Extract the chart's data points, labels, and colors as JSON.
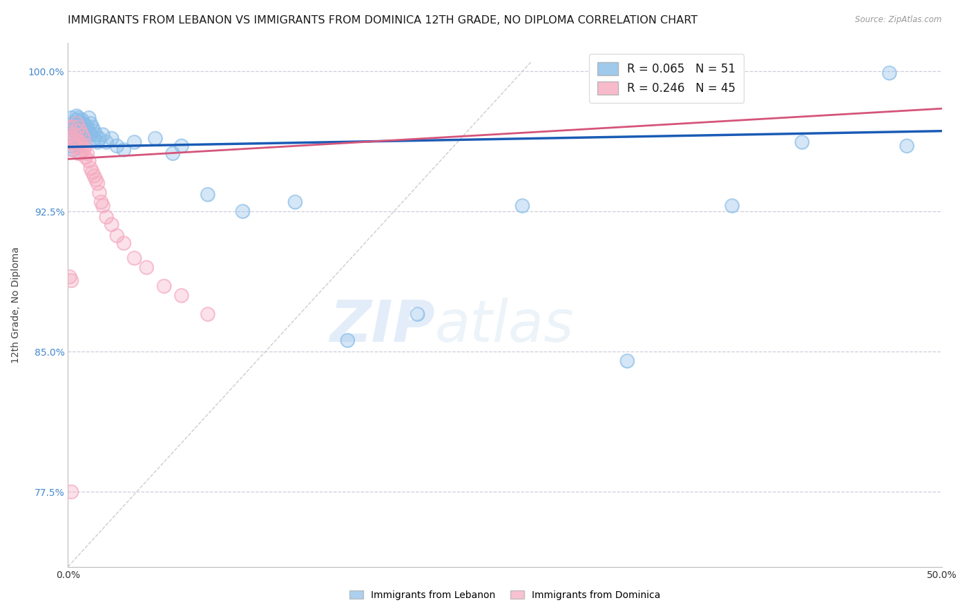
{
  "title": "IMMIGRANTS FROM LEBANON VS IMMIGRANTS FROM DOMINICA 12TH GRADE, NO DIPLOMA CORRELATION CHART",
  "source": "Source: ZipAtlas.com",
  "ylabel": "12th Grade, No Diploma",
  "xlim": [
    0.0,
    0.5
  ],
  "ylim": [
    0.735,
    1.015
  ],
  "y_ticks": [
    0.775,
    0.85,
    0.925,
    1.0
  ],
  "watermark_zip": "ZIP",
  "watermark_atlas": "atlas",
  "blue_scatter_x": [
    0.002,
    0.003,
    0.003,
    0.004,
    0.005,
    0.005,
    0.005,
    0.006,
    0.006,
    0.007,
    0.007,
    0.008,
    0.008,
    0.009,
    0.009,
    0.01,
    0.01,
    0.01,
    0.011,
    0.012,
    0.012,
    0.013,
    0.013,
    0.014,
    0.015,
    0.015,
    0.016,
    0.017,
    0.018,
    0.02,
    0.022,
    0.025,
    0.028,
    0.032,
    0.038,
    0.05,
    0.06,
    0.065,
    0.08,
    0.1,
    0.13,
    0.16,
    0.2,
    0.26,
    0.32,
    0.38,
    0.42,
    0.48,
    0.002,
    0.003,
    0.47
  ],
  "blue_scatter_y": [
    0.975,
    0.972,
    0.97,
    0.968,
    0.976,
    0.974,
    0.972,
    0.975,
    0.97,
    0.973,
    0.968,
    0.974,
    0.97,
    0.972,
    0.968,
    0.971,
    0.968,
    0.966,
    0.97,
    0.975,
    0.968,
    0.972,
    0.966,
    0.97,
    0.968,
    0.964,
    0.966,
    0.962,
    0.964,
    0.966,
    0.962,
    0.964,
    0.96,
    0.958,
    0.962,
    0.964,
    0.956,
    0.96,
    0.934,
    0.925,
    0.93,
    0.856,
    0.87,
    0.928,
    0.845,
    0.928,
    0.962,
    0.96,
    0.96,
    0.958,
    0.999
  ],
  "pink_scatter_x": [
    0.001,
    0.002,
    0.002,
    0.002,
    0.003,
    0.003,
    0.004,
    0.004,
    0.005,
    0.005,
    0.005,
    0.006,
    0.006,
    0.006,
    0.007,
    0.007,
    0.007,
    0.008,
    0.008,
    0.009,
    0.009,
    0.01,
    0.01,
    0.011,
    0.012,
    0.013,
    0.014,
    0.015,
    0.016,
    0.017,
    0.018,
    0.019,
    0.02,
    0.022,
    0.025,
    0.028,
    0.032,
    0.038,
    0.045,
    0.055,
    0.065,
    0.08,
    0.001,
    0.002,
    0.002
  ],
  "pink_scatter_y": [
    0.97,
    0.966,
    0.962,
    0.958,
    0.97,
    0.964,
    0.966,
    0.96,
    0.972,
    0.968,
    0.962,
    0.97,
    0.962,
    0.956,
    0.968,
    0.962,
    0.956,
    0.966,
    0.96,
    0.964,
    0.958,
    0.96,
    0.954,
    0.956,
    0.952,
    0.948,
    0.946,
    0.944,
    0.942,
    0.94,
    0.935,
    0.93,
    0.928,
    0.922,
    0.918,
    0.912,
    0.908,
    0.9,
    0.895,
    0.885,
    0.88,
    0.87,
    0.89,
    0.888,
    0.775
  ],
  "blue_line_x": [
    0.0,
    0.5
  ],
  "blue_line_y": [
    0.9595,
    0.968
  ],
  "pink_line_x": [
    0.0,
    0.5
  ],
  "pink_line_y": [
    0.953,
    0.98
  ],
  "ref_line_x": [
    0.0,
    0.265
  ],
  "ref_line_y": [
    0.735,
    1.005
  ],
  "blue_color": "#89bde8",
  "pink_color": "#f5aac0",
  "blue_line_color": "#1a5bb5",
  "pink_line_color": "#d4547a",
  "ref_line_color": "#cccccc",
  "grid_color": "#ccccdd",
  "title_fontsize": 11.5,
  "axis_label_fontsize": 10,
  "tick_fontsize": 10,
  "legend_fontsize": 12
}
